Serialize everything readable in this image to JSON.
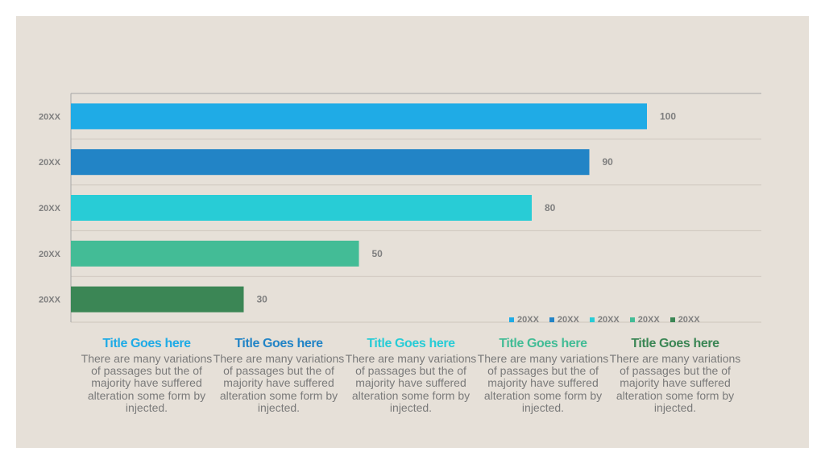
{
  "colors": {
    "background": "#e6e0d8",
    "axis": "#a6a6a6",
    "grid": "#cdc6bd",
    "category_text": "#7f7f7f",
    "value_text": "#7f7f7f",
    "series_colors": [
      "#1fabe6",
      "#2284c6",
      "#28ccd6",
      "#43bc96",
      "#3b8655"
    ]
  },
  "chart_data": {
    "type": "bar",
    "orientation": "horizontal",
    "categories": [
      "20XX",
      "20XX",
      "20XX",
      "20XX",
      "20XX"
    ],
    "values": [
      100,
      90,
      80,
      50,
      30
    ],
    "xlim": [
      0,
      120
    ],
    "grid": true,
    "legend_position": "bottom-right",
    "legend": [
      "20XX",
      "20XX",
      "20XX",
      "20XX",
      "20XX"
    ],
    "title": "",
    "xlabel": "",
    "ylabel": ""
  },
  "blocks": [
    {
      "title": "Title Goes here",
      "body": "There are many variations of passages but the of majority have suffered alteration some form by injected."
    },
    {
      "title": "Title Goes here",
      "body": "There are many variations of passages but the of majority have suffered alteration some form by injected."
    },
    {
      "title": "Title Goes here",
      "body": "There are many variations of passages but the of majority have suffered alteration some form by injected."
    },
    {
      "title": "Title Goes here",
      "body": "There are many variations of passages but the of majority have suffered alteration some form by injected."
    },
    {
      "title": "Title Goes here",
      "body": "There are many variations of passages but the of majority have suffered alteration some form by injected."
    }
  ]
}
